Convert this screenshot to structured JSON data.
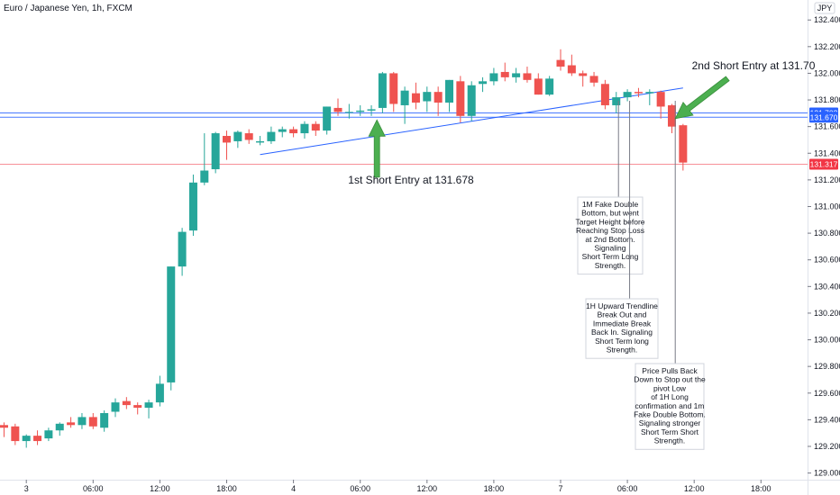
{
  "chart_data": {
    "type": "candlestick",
    "title": "Euro / Japanese Yen, 1h, FXCM",
    "currency": "JPY",
    "ylim": [
      128.95,
      132.55
    ],
    "y_ticks": [
      129.0,
      129.2,
      129.4,
      129.6,
      129.8,
      130.0,
      130.2,
      130.4,
      130.6,
      130.8,
      131.0,
      131.2,
      131.4,
      131.6,
      131.8,
      132.0,
      132.2,
      132.4
    ],
    "x_ticks": [
      {
        "i": 2,
        "label": "3"
      },
      {
        "i": 8,
        "label": "06:00"
      },
      {
        "i": 14,
        "label": "12:00"
      },
      {
        "i": 20,
        "label": "18:00"
      },
      {
        "i": 26,
        "label": "4"
      },
      {
        "i": 32,
        "label": "06:00"
      },
      {
        "i": 38,
        "label": "12:00"
      },
      {
        "i": 44,
        "label": "18:00"
      },
      {
        "i": 50,
        "label": "7"
      },
      {
        "i": 56,
        "label": "06:00"
      },
      {
        "i": 62,
        "label": "12:00"
      },
      {
        "i": 68,
        "label": "18:00"
      }
    ],
    "candles": [
      {
        "o": 129.36,
        "h": 129.38,
        "l": 129.27,
        "c": 129.34
      },
      {
        "o": 129.35,
        "h": 129.37,
        "l": 129.21,
        "c": 129.24
      },
      {
        "o": 129.24,
        "h": 129.29,
        "l": 129.19,
        "c": 129.28
      },
      {
        "o": 129.28,
        "h": 129.32,
        "l": 129.21,
        "c": 129.24
      },
      {
        "o": 129.26,
        "h": 129.34,
        "l": 129.24,
        "c": 129.32
      },
      {
        "o": 129.32,
        "h": 129.38,
        "l": 129.28,
        "c": 129.37
      },
      {
        "o": 129.38,
        "h": 129.42,
        "l": 129.34,
        "c": 129.36
      },
      {
        "o": 129.36,
        "h": 129.45,
        "l": 129.33,
        "c": 129.42
      },
      {
        "o": 129.42,
        "h": 129.45,
        "l": 129.33,
        "c": 129.35
      },
      {
        "o": 129.34,
        "h": 129.47,
        "l": 129.31,
        "c": 129.45
      },
      {
        "o": 129.46,
        "h": 129.56,
        "l": 129.42,
        "c": 129.53
      },
      {
        "o": 129.54,
        "h": 129.57,
        "l": 129.48,
        "c": 129.51
      },
      {
        "o": 129.51,
        "h": 129.53,
        "l": 129.44,
        "c": 129.49
      },
      {
        "o": 129.49,
        "h": 129.55,
        "l": 129.41,
        "c": 129.53
      },
      {
        "o": 129.53,
        "h": 129.73,
        "l": 129.5,
        "c": 129.67
      },
      {
        "o": 129.68,
        "h": 130.55,
        "l": 129.62,
        "c": 130.55
      },
      {
        "o": 130.55,
        "h": 130.84,
        "l": 130.48,
        "c": 130.81
      },
      {
        "o": 130.82,
        "h": 131.24,
        "l": 130.78,
        "c": 131.18
      },
      {
        "o": 131.18,
        "h": 131.55,
        "l": 131.16,
        "c": 131.27
      },
      {
        "o": 131.28,
        "h": 131.56,
        "l": 131.25,
        "c": 131.55
      },
      {
        "o": 131.53,
        "h": 131.57,
        "l": 131.35,
        "c": 131.48
      },
      {
        "o": 131.49,
        "h": 131.57,
        "l": 131.44,
        "c": 131.56
      },
      {
        "o": 131.55,
        "h": 131.58,
        "l": 131.47,
        "c": 131.5
      },
      {
        "o": 131.48,
        "h": 131.53,
        "l": 131.46,
        "c": 131.49
      },
      {
        "o": 131.49,
        "h": 131.6,
        "l": 131.47,
        "c": 131.56
      },
      {
        "o": 131.56,
        "h": 131.6,
        "l": 131.52,
        "c": 131.58
      },
      {
        "o": 131.58,
        "h": 131.6,
        "l": 131.52,
        "c": 131.55
      },
      {
        "o": 131.55,
        "h": 131.64,
        "l": 131.51,
        "c": 131.62
      },
      {
        "o": 131.62,
        "h": 131.64,
        "l": 131.53,
        "c": 131.57
      },
      {
        "o": 131.57,
        "h": 131.75,
        "l": 131.54,
        "c": 131.75
      },
      {
        "o": 131.74,
        "h": 131.81,
        "l": 131.68,
        "c": 131.71
      },
      {
        "o": 131.71,
        "h": 131.77,
        "l": 131.66,
        "c": 131.71
      },
      {
        "o": 131.71,
        "h": 131.76,
        "l": 131.68,
        "c": 131.72
      },
      {
        "o": 131.72,
        "h": 131.76,
        "l": 131.68,
        "c": 131.73
      },
      {
        "o": 131.74,
        "h": 132.01,
        "l": 131.7,
        "c": 132.0
      },
      {
        "o": 132.0,
        "h": 132.01,
        "l": 131.71,
        "c": 131.77
      },
      {
        "o": 131.76,
        "h": 131.9,
        "l": 131.62,
        "c": 131.87
      },
      {
        "o": 131.85,
        "h": 131.93,
        "l": 131.73,
        "c": 131.78
      },
      {
        "o": 131.79,
        "h": 131.9,
        "l": 131.71,
        "c": 131.86
      },
      {
        "o": 131.86,
        "h": 131.9,
        "l": 131.68,
        "c": 131.78
      },
      {
        "o": 131.78,
        "h": 131.95,
        "l": 131.71,
        "c": 131.95
      },
      {
        "o": 131.94,
        "h": 131.98,
        "l": 131.63,
        "c": 131.68
      },
      {
        "o": 131.68,
        "h": 131.94,
        "l": 131.64,
        "c": 131.91
      },
      {
        "o": 131.92,
        "h": 131.97,
        "l": 131.86,
        "c": 131.94
      },
      {
        "o": 131.94,
        "h": 132.04,
        "l": 131.91,
        "c": 132.0
      },
      {
        "o": 132.01,
        "h": 132.08,
        "l": 131.94,
        "c": 131.97
      },
      {
        "o": 131.97,
        "h": 132.04,
        "l": 131.93,
        "c": 132.0
      },
      {
        "o": 132.0,
        "h": 132.05,
        "l": 131.93,
        "c": 131.95
      },
      {
        "o": 131.96,
        "h": 132.0,
        "l": 131.84,
        "c": 131.84
      },
      {
        "o": 131.84,
        "h": 131.98,
        "l": 131.83,
        "c": 131.96
      },
      {
        "o": 132.1,
        "h": 132.18,
        "l": 132.02,
        "c": 132.05
      },
      {
        "o": 132.06,
        "h": 132.14,
        "l": 131.98,
        "c": 132.0
      },
      {
        "o": 132.0,
        "h": 132.02,
        "l": 131.9,
        "c": 131.98
      },
      {
        "o": 131.98,
        "h": 132.01,
        "l": 131.9,
        "c": 131.93
      },
      {
        "o": 131.92,
        "h": 131.95,
        "l": 131.73,
        "c": 131.76
      },
      {
        "o": 131.76,
        "h": 131.86,
        "l": 131.7,
        "c": 131.82
      },
      {
        "o": 131.82,
        "h": 131.88,
        "l": 131.79,
        "c": 131.86
      },
      {
        "o": 131.86,
        "h": 131.89,
        "l": 131.82,
        "c": 131.85
      },
      {
        "o": 131.85,
        "h": 131.88,
        "l": 131.76,
        "c": 131.86
      },
      {
        "o": 131.86,
        "h": 131.87,
        "l": 131.66,
        "c": 131.75
      },
      {
        "o": 131.76,
        "h": 131.77,
        "l": 131.55,
        "c": 131.6
      },
      {
        "o": 131.61,
        "h": 131.62,
        "l": 131.27,
        "c": 131.33
      }
    ],
    "trendline": {
      "from": {
        "i": 23,
        "y": 131.39
      },
      "to": {
        "i": 61,
        "y": 131.89
      },
      "color": "#2962ff"
    },
    "hlines": [
      {
        "y": 131.702,
        "label": "131.702",
        "color": "#2962ff"
      },
      {
        "y": 131.67,
        "label": "131.670",
        "color": "#2962ff"
      },
      {
        "y": 131.317,
        "label": "131.317",
        "color": "#f23645"
      }
    ],
    "annotations": [
      {
        "text": "1st Short Entry at 131.678",
        "arrow_from": {
          "i": 33.5,
          "y": 131.22
        },
        "arrow_to": {
          "i": 33.5,
          "y": 131.65
        }
      },
      {
        "text": "2nd Short Entry at 131.70",
        "arrow_from": {
          "i": 65,
          "y": 131.96
        },
        "arrow_to": {
          "i": 60.3,
          "y": 131.66
        }
      }
    ],
    "notes": [
      {
        "anchor_i": 55.2,
        "lines": [
          "1M Fake Double",
          "Bottom, but went",
          "Target Height before",
          "Reaching Stop Loss",
          "at 2nd Bottom.",
          "Signaling",
          "Short Term Long",
          "Strength."
        ]
      },
      {
        "anchor_i": 56.2,
        "lines": [
          "1H Upward Trendline",
          "Break Out and",
          "Immediate Break",
          "Back In. Signaling",
          "Short Term long",
          "Strength."
        ]
      },
      {
        "anchor_i": 60.3,
        "lines": [
          "Price Pulls Back",
          "Down to Stop out the",
          "pivot Low",
          "of 1H Long",
          "confirmation and 1m",
          "Fake Double Bottom.",
          "Signaling stronger",
          "Short Term Short",
          "Strength."
        ]
      }
    ],
    "colors": {
      "up": "#26a69a",
      "down": "#ef5350",
      "axis": "#131722"
    }
  }
}
